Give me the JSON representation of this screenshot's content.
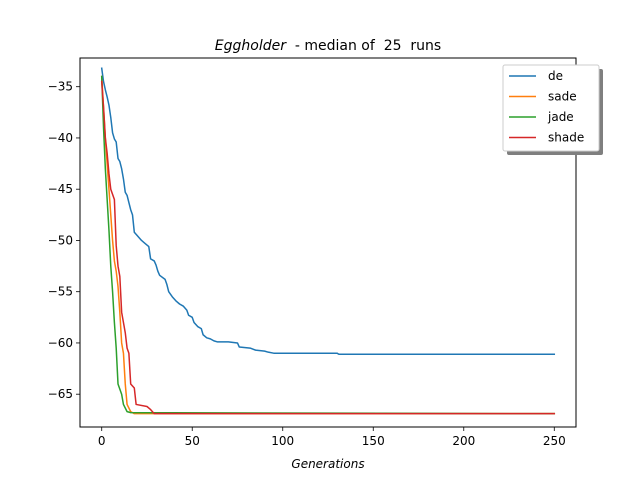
{
  "chart_data": {
    "type": "line",
    "title_italic": "Eggholder",
    "title_rest": "  - median of  25  runs",
    "xlabel": "Generations",
    "ylabel": "",
    "xlim": [
      -12,
      262
    ],
    "ylim": [
      -68.2,
      -32.2
    ],
    "xticks": [
      0,
      50,
      100,
      150,
      200,
      250
    ],
    "yticks": [
      -35,
      -40,
      -45,
      -50,
      -55,
      -60,
      -65
    ],
    "grid": false,
    "legend_position": "top-right",
    "series": [
      {
        "name": "de",
        "color": "#1f77b4",
        "points": [
          [
            0,
            -33.2
          ],
          [
            1,
            -34.5
          ],
          [
            2,
            -35.3
          ],
          [
            3,
            -36.0
          ],
          [
            4,
            -36.8
          ],
          [
            5,
            -38.0
          ],
          [
            6,
            -39.5
          ],
          [
            7,
            -40.1
          ],
          [
            8,
            -40.4
          ],
          [
            9,
            -42.0
          ],
          [
            10,
            -42.3
          ],
          [
            11,
            -43.0
          ],
          [
            12,
            -44.0
          ],
          [
            13,
            -45.3
          ],
          [
            14,
            -45.6
          ],
          [
            15,
            -46.3
          ],
          [
            16,
            -47.0
          ],
          [
            17,
            -47.5
          ],
          [
            18,
            -49.2
          ],
          [
            20,
            -49.6
          ],
          [
            22,
            -50.0
          ],
          [
            24,
            -50.3
          ],
          [
            26,
            -50.6
          ],
          [
            27,
            -51.8
          ],
          [
            29,
            -52.0
          ],
          [
            30,
            -52.4
          ],
          [
            31,
            -53.0
          ],
          [
            32,
            -53.4
          ],
          [
            35,
            -53.8
          ],
          [
            36,
            -54.3
          ],
          [
            37,
            -55.0
          ],
          [
            39,
            -55.5
          ],
          [
            41,
            -55.9
          ],
          [
            43,
            -56.2
          ],
          [
            45,
            -56.4
          ],
          [
            47,
            -56.8
          ],
          [
            48,
            -57.3
          ],
          [
            50,
            -57.5
          ],
          [
            51,
            -58.0
          ],
          [
            53,
            -58.4
          ],
          [
            55,
            -58.6
          ],
          [
            56,
            -59.2
          ],
          [
            58,
            -59.5
          ],
          [
            60,
            -59.6
          ],
          [
            62,
            -59.8
          ],
          [
            64,
            -59.9
          ],
          [
            70,
            -59.9
          ],
          [
            75,
            -60.0
          ],
          [
            76,
            -60.4
          ],
          [
            82,
            -60.5
          ],
          [
            85,
            -60.7
          ],
          [
            90,
            -60.8
          ],
          [
            92,
            -60.9
          ],
          [
            95,
            -61.0
          ],
          [
            100,
            -61.0
          ],
          [
            130,
            -61.0
          ],
          [
            131,
            -61.1
          ],
          [
            250,
            -61.1
          ]
        ]
      },
      {
        "name": "sade",
        "color": "#ff7f0e",
        "points": [
          [
            0,
            -34.0
          ],
          [
            1,
            -37.0
          ],
          [
            2,
            -40.0
          ],
          [
            3,
            -42.5
          ],
          [
            4,
            -45.0
          ],
          [
            5,
            -47.5
          ],
          [
            6,
            -50.0
          ],
          [
            7,
            -52.0
          ],
          [
            8,
            -53.0
          ],
          [
            9,
            -54.5
          ],
          [
            10,
            -57.0
          ],
          [
            11,
            -60.0
          ],
          [
            12,
            -61.0
          ],
          [
            13,
            -64.0
          ],
          [
            14,
            -66.0
          ],
          [
            16,
            -66.7
          ],
          [
            18,
            -66.9
          ],
          [
            250,
            -66.9
          ]
        ]
      },
      {
        "name": "jade",
        "color": "#2ca02c",
        "points": [
          [
            0,
            -34.0
          ],
          [
            1,
            -39.0
          ],
          [
            2,
            -43.0
          ],
          [
            3,
            -46.0
          ],
          [
            4,
            -49.0
          ],
          [
            5,
            -52.5
          ],
          [
            6,
            -55.0
          ],
          [
            7,
            -58.0
          ],
          [
            8,
            -60.5
          ],
          [
            9,
            -64.0
          ],
          [
            11,
            -65.0
          ],
          [
            12,
            -66.0
          ],
          [
            14,
            -66.7
          ],
          [
            16,
            -66.8
          ],
          [
            250,
            -66.9
          ]
        ]
      },
      {
        "name": "shade",
        "color": "#d62728",
        "points": [
          [
            0,
            -34.5
          ],
          [
            1,
            -37.0
          ],
          [
            2,
            -40.0
          ],
          [
            3,
            -41.5
          ],
          [
            4,
            -43.5
          ],
          [
            5,
            -45.0
          ],
          [
            6,
            -45.5
          ],
          [
            7,
            -46.0
          ],
          [
            8,
            -50.5
          ],
          [
            9,
            -52.5
          ],
          [
            10,
            -53.5
          ],
          [
            11,
            -57.0
          ],
          [
            12,
            -58.0
          ],
          [
            13,
            -59.0
          ],
          [
            14,
            -60.5
          ],
          [
            15,
            -61.0
          ],
          [
            16,
            -64.0
          ],
          [
            18,
            -64.4
          ],
          [
            19,
            -66.0
          ],
          [
            25,
            -66.2
          ],
          [
            27,
            -66.5
          ],
          [
            29,
            -66.9
          ],
          [
            250,
            -66.9
          ]
        ]
      }
    ]
  }
}
